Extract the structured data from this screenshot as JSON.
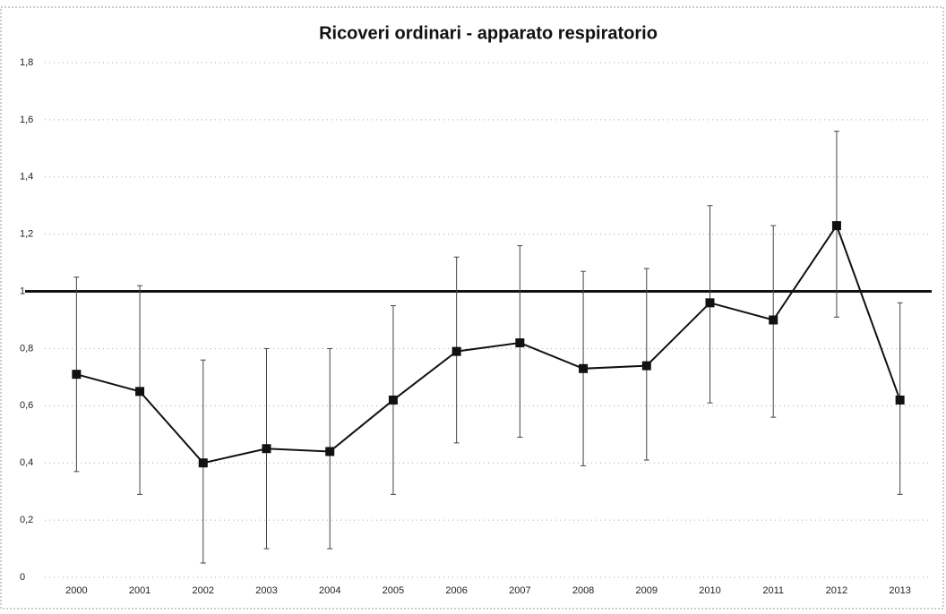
{
  "chart_data": {
    "type": "line",
    "title": "Ricoveri ordinari - apparato respiratorio",
    "categories": [
      "2000",
      "2001",
      "2002",
      "2003",
      "2004",
      "2005",
      "2006",
      "2007",
      "2008",
      "2009",
      "2010",
      "2011",
      "2012",
      "2013"
    ],
    "series": [
      {
        "color": "#111111",
        "values": [
          0.71,
          0.65,
          0.4,
          0.45,
          0.44,
          0.62,
          0.79,
          0.82,
          0.73,
          0.74,
          0.96,
          0.9,
          1.23,
          0.62
        ],
        "lower": [
          0.37,
          0.29,
          0.05,
          0.1,
          0.1,
          0.29,
          0.47,
          0.49,
          0.39,
          0.41,
          0.61,
          0.56,
          0.91,
          0.29
        ],
        "upper": [
          1.05,
          1.02,
          0.76,
          0.8,
          0.8,
          0.95,
          1.12,
          1.16,
          1.07,
          1.08,
          1.3,
          1.23,
          1.56,
          0.96
        ]
      }
    ],
    "reference_line": 1,
    "ylim": [
      0,
      1.8
    ],
    "yticks": [
      0,
      {
        "value": 0.2,
        "label": "0,2"
      },
      {
        "value": 0.4,
        "label": "0,4"
      },
      {
        "value": 0.6,
        "label": "0,6"
      },
      {
        "value": 0.8,
        "label": "0,8"
      },
      1,
      {
        "value": 1.2,
        "label": "1,2"
      },
      {
        "value": 1.4,
        "label": "1,4"
      },
      {
        "value": 1.6,
        "label": "1,6"
      },
      {
        "value": 1.8,
        "label": "1,8"
      }
    ],
    "grid": true
  }
}
